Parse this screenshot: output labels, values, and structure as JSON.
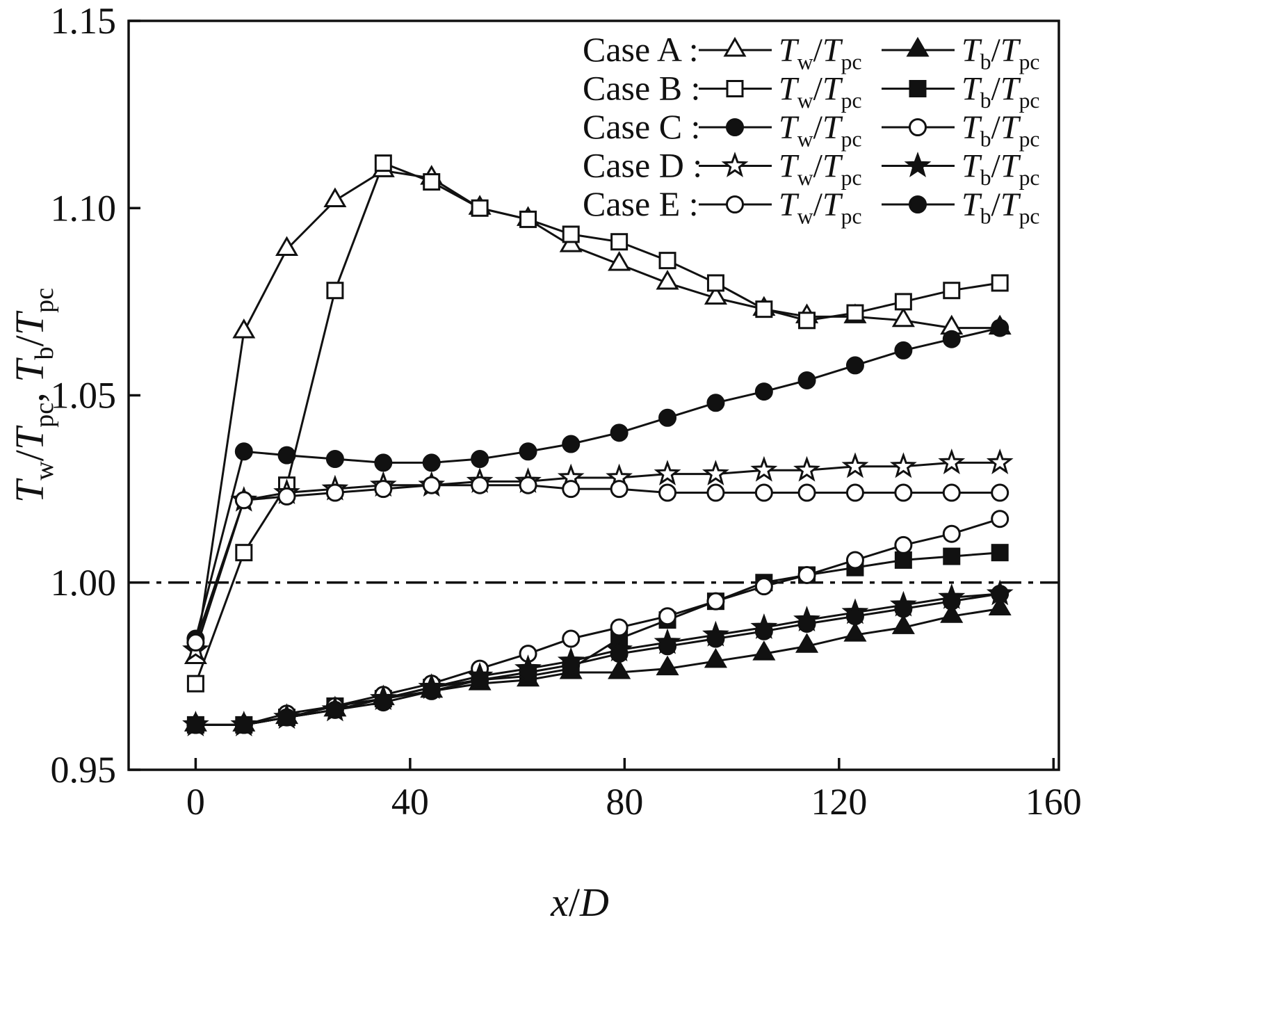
{
  "figure": {
    "background": "#ffffff",
    "line_color": "#111111"
  },
  "chart_data": {
    "type": "line",
    "title": "",
    "xlabel": "x/D",
    "ylabel": "T_w/T_pc, T_b/T_pc",
    "xlim": [
      -12.5,
      161
    ],
    "ylim": [
      0.95,
      1.15
    ],
    "xticks": [
      0,
      40,
      80,
      120,
      160
    ],
    "yticks": [
      0.95,
      1.0,
      1.05,
      1.1,
      1.15
    ],
    "reference_line_y": 1.0,
    "grid": false,
    "x": [
      0,
      9,
      17,
      26,
      35,
      44,
      53,
      62,
      70,
      79,
      88,
      97,
      106,
      114,
      123,
      132,
      141,
      150
    ],
    "series": [
      {
        "name": "Case A Tw/Tpc",
        "case": "A",
        "quantity": "T_w/T_pc",
        "marker": "triangle-open",
        "values": [
          0.98,
          1.067,
          1.089,
          1.102,
          1.11,
          1.108,
          1.1,
          1.097,
          1.09,
          1.085,
          1.08,
          1.076,
          1.073,
          1.071,
          1.071,
          1.07,
          1.068,
          1.068
        ]
      },
      {
        "name": "Case B Tw/Tpc",
        "case": "B",
        "quantity": "T_w/T_pc",
        "marker": "square-open",
        "values": [
          0.973,
          1.008,
          1.026,
          1.078,
          1.112,
          1.107,
          1.1,
          1.097,
          1.093,
          1.091,
          1.086,
          1.08,
          1.073,
          1.07,
          1.072,
          1.075,
          1.078,
          1.08
        ]
      },
      {
        "name": "Case C Tw/Tpc",
        "case": "C",
        "quantity": "T_w/T_pc",
        "marker": "circle-filled",
        "values": [
          0.985,
          1.035,
          1.034,
          1.033,
          1.032,
          1.032,
          1.033,
          1.035,
          1.037,
          1.04,
          1.044,
          1.048,
          1.051,
          1.054,
          1.058,
          1.062,
          1.065,
          1.068
        ]
      },
      {
        "name": "Case D Tw/Tpc",
        "case": "D",
        "quantity": "T_w/T_pc",
        "marker": "star-open",
        "values": [
          0.982,
          1.022,
          1.024,
          1.025,
          1.026,
          1.026,
          1.027,
          1.027,
          1.028,
          1.028,
          1.029,
          1.029,
          1.03,
          1.03,
          1.031,
          1.031,
          1.032,
          1.032
        ]
      },
      {
        "name": "Case E Tw/Tpc",
        "case": "E",
        "quantity": "T_w/T_pc",
        "marker": "circle-open",
        "values": [
          0.984,
          1.022,
          1.023,
          1.024,
          1.025,
          1.026,
          1.026,
          1.026,
          1.025,
          1.025,
          1.024,
          1.024,
          1.024,
          1.024,
          1.024,
          1.024,
          1.024,
          1.024
        ]
      },
      {
        "name": "Case A Tb/Tpc",
        "case": "A",
        "quantity": "T_b/T_pc",
        "marker": "triangle-filled",
        "values": [
          0.962,
          0.962,
          0.964,
          0.966,
          0.969,
          0.971,
          0.973,
          0.974,
          0.976,
          0.976,
          0.977,
          0.979,
          0.981,
          0.983,
          0.986,
          0.988,
          0.991,
          0.993
        ]
      },
      {
        "name": "Case B Tb/Tpc",
        "case": "B",
        "quantity": "T_b/T_pc",
        "marker": "square-filled",
        "values": [
          0.962,
          0.962,
          0.964,
          0.967,
          0.969,
          0.972,
          0.974,
          0.975,
          0.977,
          0.985,
          0.99,
          0.995,
          1.0,
          1.002,
          1.004,
          1.006,
          1.007,
          1.008
        ]
      },
      {
        "name": "Case C Tb/Tpc",
        "case": "C",
        "quantity": "T_b/T_pc",
        "marker": "circle-open",
        "values": [
          0.962,
          0.962,
          0.965,
          0.967,
          0.97,
          0.973,
          0.977,
          0.981,
          0.985,
          0.988,
          0.991,
          0.995,
          0.999,
          1.002,
          1.006,
          1.01,
          1.013,
          1.017
        ]
      },
      {
        "name": "Case D Tb/Tpc",
        "case": "D",
        "quantity": "T_b/T_pc",
        "marker": "star-filled",
        "values": [
          0.962,
          0.962,
          0.964,
          0.966,
          0.969,
          0.972,
          0.975,
          0.977,
          0.979,
          0.982,
          0.984,
          0.986,
          0.988,
          0.99,
          0.992,
          0.994,
          0.996,
          0.997
        ]
      },
      {
        "name": "Case E Tb/Tpc",
        "case": "E",
        "quantity": "T_b/T_pc",
        "marker": "circle-filled",
        "values": [
          0.962,
          0.962,
          0.964,
          0.966,
          0.968,
          0.971,
          0.974,
          0.976,
          0.978,
          0.981,
          0.983,
          0.985,
          0.987,
          0.989,
          0.991,
          0.993,
          0.995,
          0.997
        ]
      }
    ],
    "legend": {
      "position": "top-right",
      "rows": [
        {
          "case_label": "Case A :",
          "tw": {
            "marker": "triangle-open",
            "label": "T_w/T_pc"
          },
          "tb": {
            "marker": "triangle-filled",
            "label": "T_b/T_pc"
          }
        },
        {
          "case_label": "Case B :",
          "tw": {
            "marker": "square-open",
            "label": "T_w/T_pc"
          },
          "tb": {
            "marker": "square-filled",
            "label": "T_b/T_pc"
          }
        },
        {
          "case_label": "Case C :",
          "tw": {
            "marker": "circle-filled",
            "label": "T_w/T_pc"
          },
          "tb": {
            "marker": "circle-open",
            "label": "T_b/T_pc"
          }
        },
        {
          "case_label": "Case D :",
          "tw": {
            "marker": "star-open",
            "label": "T_w/T_pc"
          },
          "tb": {
            "marker": "star-filled",
            "label": "T_b/T_pc"
          }
        },
        {
          "case_label": "Case E :",
          "tw": {
            "marker": "circle-open",
            "label": "T_w/T_pc"
          },
          "tb": {
            "marker": "circle-filled",
            "label": "T_b/T_pc"
          }
        }
      ]
    }
  }
}
